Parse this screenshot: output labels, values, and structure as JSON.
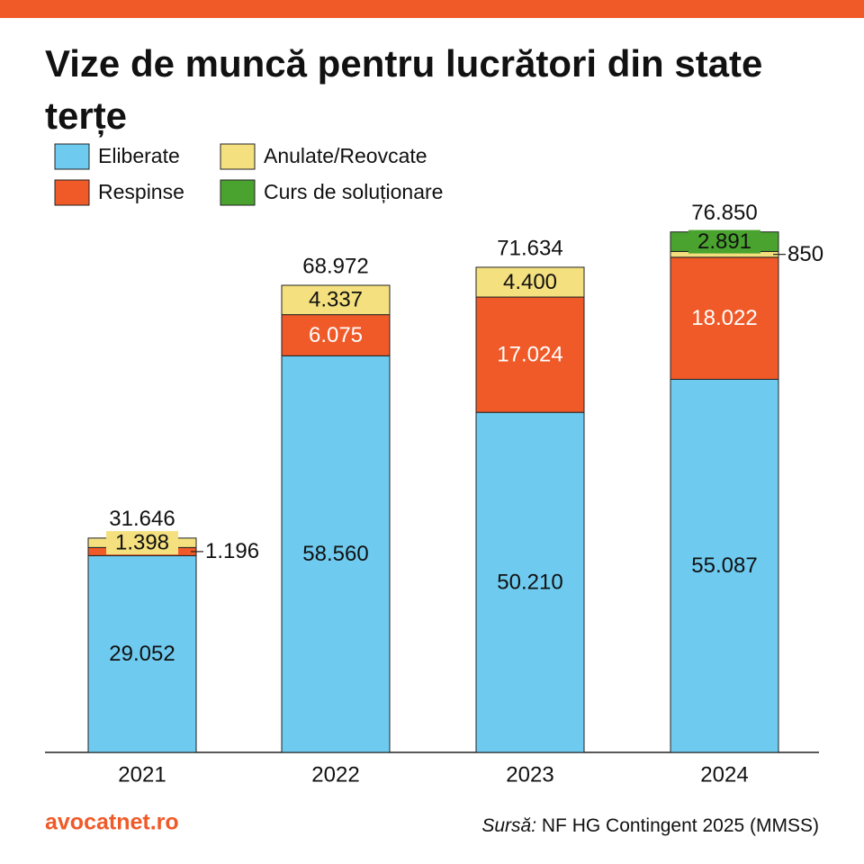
{
  "chart_data": {
    "type": "stacked_bar",
    "title": "Vize de muncă pentru lucrători din state terțe",
    "categories": [
      "2021",
      "2022",
      "2023",
      "2024"
    ],
    "series": [
      {
        "name": "Eliberate",
        "color": "#6ecbef",
        "values": [
          29052,
          58560,
          50210,
          55087
        ],
        "value_labels": [
          "29.052",
          "58.560",
          "50.210",
          "55.087"
        ]
      },
      {
        "name": "Respinse",
        "color": "#f05a28",
        "values": [
          1196,
          6075,
          17024,
          18022
        ],
        "value_labels": [
          "1.196",
          "6.075",
          "17.024",
          "18.022"
        ]
      },
      {
        "name": "Anulate/Reovcate",
        "color": "#f4e07e",
        "values": [
          1398,
          4337,
          4400,
          850
        ],
        "value_labels": [
          "1.398",
          "4.337",
          "4.400",
          "850"
        ]
      },
      {
        "name": "Curs de soluționare",
        "color": "#4aa32e",
        "values": [
          null,
          null,
          null,
          2891
        ],
        "value_labels": [
          null,
          null,
          null,
          "2.891"
        ]
      }
    ],
    "totals": {
      "values": [
        31646,
        68972,
        71634,
        76850
      ],
      "value_labels": [
        "31.646",
        "68.972",
        "71.634",
        "76.850"
      ]
    },
    "ylim": [
      0,
      80000
    ],
    "brand": "avocatnet.ro",
    "source": {
      "label": "Sursă:",
      "text": "NF HG Contingent 2025 (MMSS)"
    }
  }
}
